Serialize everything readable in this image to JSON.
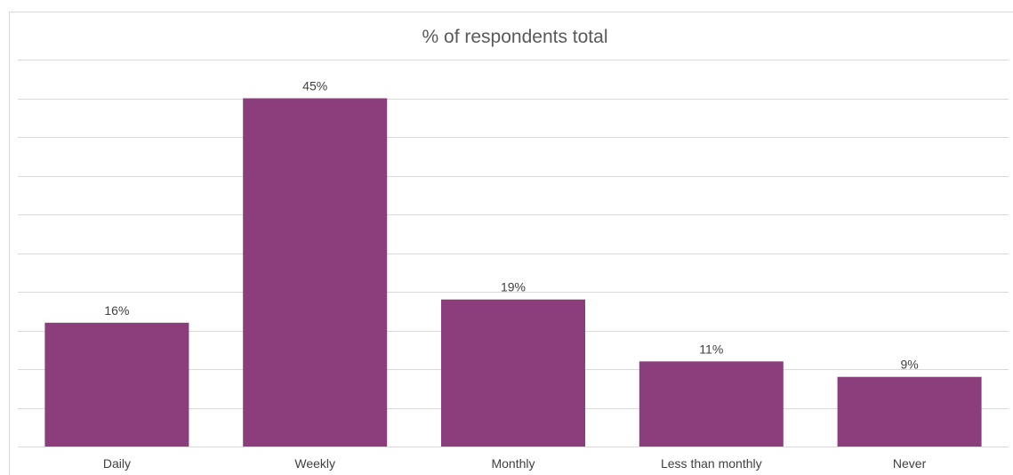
{
  "chart_data": {
    "type": "bar",
    "title": "% of respondents total",
    "categories": [
      "Daily",
      "Weekly",
      "Monthly",
      "Less than monthly",
      "Never"
    ],
    "values": [
      16,
      45,
      19,
      11,
      9
    ],
    "data_labels": [
      "16%",
      "45%",
      "19%",
      "11%",
      "9%"
    ],
    "xlabel": "",
    "ylabel": "",
    "ylim": [
      0,
      50
    ],
    "grid": true,
    "legend": "none",
    "bar_color": "#8b3e7b"
  }
}
